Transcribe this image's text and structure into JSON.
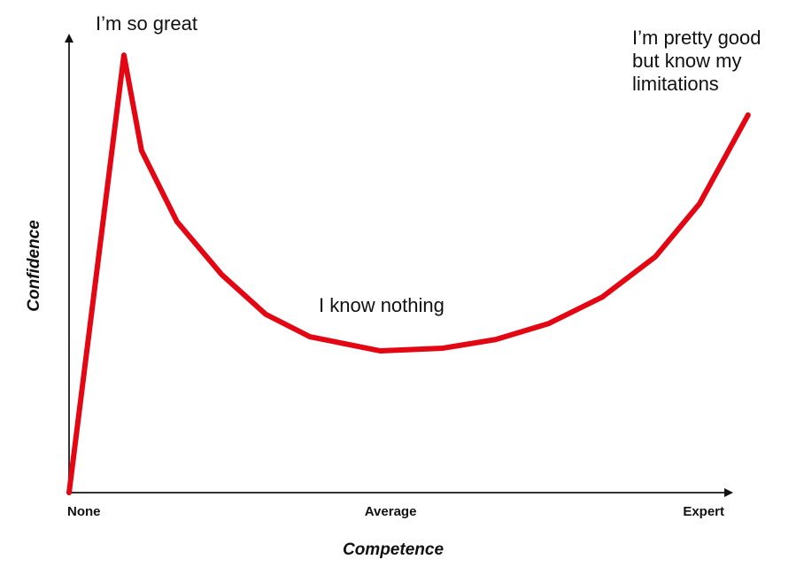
{
  "chart_data": {
    "type": "line",
    "title": "",
    "xlabel": "Competence",
    "ylabel": "Confidence",
    "x_tick_labels": [
      {
        "x": 0,
        "label": "None"
      },
      {
        "x": 51,
        "label": "Average"
      },
      {
        "x": 100,
        "label": "Expert"
      }
    ],
    "xlim": [
      0,
      105
    ],
    "ylim": [
      0,
      100
    ],
    "grid": false,
    "series": [
      {
        "color": "#e30613",
        "points": [
          [
            0,
            0
          ],
          [
            8.7,
            95.7
          ],
          [
            11.5,
            74.8
          ],
          [
            17.1,
            59.3
          ],
          [
            24.2,
            47.7
          ],
          [
            31.2,
            39.0
          ],
          [
            38.2,
            34.1
          ],
          [
            49.4,
            31.0
          ],
          [
            59.3,
            31.6
          ],
          [
            67.7,
            33.5
          ],
          [
            76.1,
            37.0
          ],
          [
            84.6,
            42.8
          ],
          [
            93.0,
            51.6
          ],
          [
            100,
            63.2
          ],
          [
            107.7,
            82.6
          ]
        ]
      }
    ],
    "annotations": [
      {
        "text": "I’m so great"
      },
      {
        "text": "I know nothing"
      },
      {
        "text": "I’m pretty good\nbut know my\nlimitations"
      }
    ]
  }
}
